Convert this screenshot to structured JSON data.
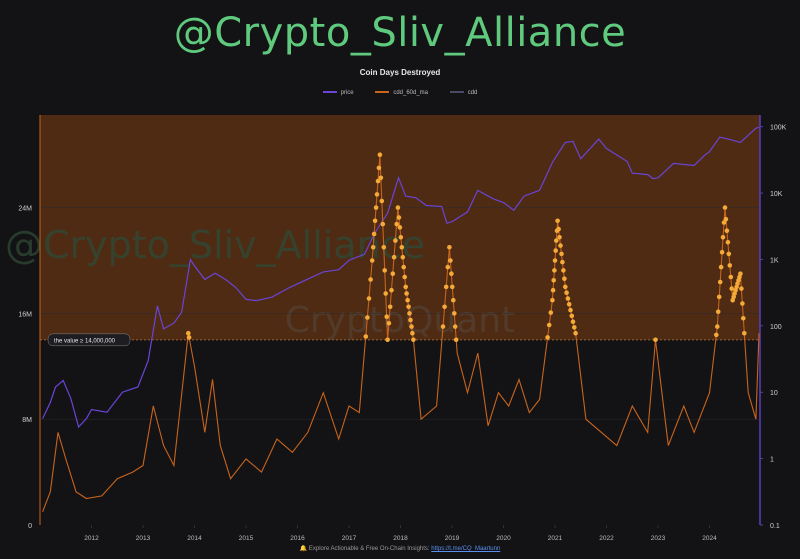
{
  "header": {
    "channel_watermark": "@Crypto_Sliv_Alliance"
  },
  "chart_data": {
    "type": "line",
    "title": "Coin Days Destroyed",
    "legend": [
      {
        "name": "price",
        "color": "#6a45d6"
      },
      {
        "name": "cdd_60d_ma",
        "color": "#c8641c"
      },
      {
        "name": "cdd",
        "color": "#4a4a66"
      }
    ],
    "x_ticks": [
      "2012",
      "2013",
      "2014",
      "2015",
      "2016",
      "2017",
      "2018",
      "2019",
      "2020",
      "2021",
      "2022",
      "2023",
      "2024"
    ],
    "left_axis": {
      "ticks": [
        "0",
        "8M",
        "16M",
        "24M"
      ],
      "range": [
        0,
        31000000
      ]
    },
    "right_axis": {
      "scale": "log",
      "ticks": [
        "0.1",
        "1",
        "10",
        "100",
        "1K",
        "10K",
        "100K"
      ],
      "range": [
        0.1,
        150000
      ]
    },
    "threshold": {
      "value": 14000000,
      "label": "the value ≥ 14,000,000"
    },
    "background_watermarks": [
      "@Crypto_Sliv_Alliance",
      "CryptoQuant"
    ],
    "highlight_color": "#f5a938",
    "series": [
      {
        "name": "price",
        "axis": "right",
        "points": [
          [
            2011.05,
            4
          ],
          [
            2011.2,
            7
          ],
          [
            2011.3,
            12
          ],
          [
            2011.45,
            15
          ],
          [
            2011.6,
            8
          ],
          [
            2011.75,
            3
          ],
          [
            2011.9,
            4
          ],
          [
            2012.0,
            5.5
          ],
          [
            2012.3,
            5
          ],
          [
            2012.6,
            10
          ],
          [
            2012.9,
            12
          ],
          [
            2013.1,
            30
          ],
          [
            2013.28,
            200
          ],
          [
            2013.4,
            90
          ],
          [
            2013.6,
            110
          ],
          [
            2013.75,
            160
          ],
          [
            2013.92,
            1000
          ],
          [
            2014.0,
            800
          ],
          [
            2014.2,
            500
          ],
          [
            2014.4,
            620
          ],
          [
            2014.6,
            500
          ],
          [
            2014.8,
            380
          ],
          [
            2015.0,
            250
          ],
          [
            2015.2,
            240
          ],
          [
            2015.5,
            270
          ],
          [
            2015.85,
            380
          ],
          [
            2016.0,
            430
          ],
          [
            2016.5,
            650
          ],
          [
            2016.8,
            700
          ],
          [
            2017.0,
            970
          ],
          [
            2017.3,
            1200
          ],
          [
            2017.5,
            2500
          ],
          [
            2017.75,
            5000
          ],
          [
            2017.96,
            17000
          ],
          [
            2018.1,
            9000
          ],
          [
            2018.3,
            8500
          ],
          [
            2018.5,
            6500
          ],
          [
            2018.8,
            6300
          ],
          [
            2018.9,
            3500
          ],
          [
            2019.0,
            3700
          ],
          [
            2019.3,
            5200
          ],
          [
            2019.5,
            11000
          ],
          [
            2019.8,
            8200
          ],
          [
            2020.0,
            7200
          ],
          [
            2020.2,
            5500
          ],
          [
            2020.4,
            9000
          ],
          [
            2020.7,
            11000
          ],
          [
            2020.95,
            29000
          ],
          [
            2021.2,
            58000
          ],
          [
            2021.35,
            60000
          ],
          [
            2021.5,
            33000
          ],
          [
            2021.85,
            65000
          ],
          [
            2022.0,
            47000
          ],
          [
            2022.4,
            30000
          ],
          [
            2022.5,
            20000
          ],
          [
            2022.8,
            19000
          ],
          [
            2022.9,
            16500
          ],
          [
            2023.0,
            17000
          ],
          [
            2023.3,
            28000
          ],
          [
            2023.7,
            26000
          ],
          [
            2023.9,
            37000
          ],
          [
            2024.0,
            42000
          ],
          [
            2024.2,
            70000
          ],
          [
            2024.4,
            64000
          ],
          [
            2024.6,
            58000
          ],
          [
            2024.9,
            95000
          ],
          [
            2024.96,
            98000
          ]
        ]
      },
      {
        "name": "cdd_60d_ma",
        "axis": "left",
        "points": [
          [
            2011.05,
            1000000
          ],
          [
            2011.2,
            2500000
          ],
          [
            2011.35,
            7000000
          ],
          [
            2011.5,
            5000000
          ],
          [
            2011.7,
            2500000
          ],
          [
            2011.9,
            2000000
          ],
          [
            2012.2,
            2200000
          ],
          [
            2012.5,
            3500000
          ],
          [
            2012.8,
            4000000
          ],
          [
            2013.0,
            4500000
          ],
          [
            2013.2,
            9000000
          ],
          [
            2013.4,
            6000000
          ],
          [
            2013.6,
            4500000
          ],
          [
            2013.88,
            14500000
          ],
          [
            2014.0,
            12000000
          ],
          [
            2014.2,
            7000000
          ],
          [
            2014.35,
            11000000
          ],
          [
            2014.5,
            6000000
          ],
          [
            2014.7,
            3500000
          ],
          [
            2015.0,
            5000000
          ],
          [
            2015.3,
            4000000
          ],
          [
            2015.6,
            6500000
          ],
          [
            2015.9,
            5500000
          ],
          [
            2016.2,
            7000000
          ],
          [
            2016.5,
            10000000
          ],
          [
            2016.8,
            6500000
          ],
          [
            2017.0,
            9000000
          ],
          [
            2017.2,
            8500000
          ],
          [
            2017.45,
            20000000
          ],
          [
            2017.6,
            28000000
          ],
          [
            2017.75,
            14000000
          ],
          [
            2017.95,
            24000000
          ],
          [
            2018.1,
            18000000
          ],
          [
            2018.25,
            14000000
          ],
          [
            2018.4,
            8000000
          ],
          [
            2018.7,
            9000000
          ],
          [
            2018.95,
            21000000
          ],
          [
            2019.1,
            13000000
          ],
          [
            2019.3,
            10000000
          ],
          [
            2019.5,
            13000000
          ],
          [
            2019.7,
            7500000
          ],
          [
            2019.9,
            10000000
          ],
          [
            2020.1,
            9000000
          ],
          [
            2020.3,
            11000000
          ],
          [
            2020.5,
            8500000
          ],
          [
            2020.7,
            9500000
          ],
          [
            2020.95,
            17000000
          ],
          [
            2021.05,
            23000000
          ],
          [
            2021.2,
            18000000
          ],
          [
            2021.4,
            14500000
          ],
          [
            2021.6,
            8000000
          ],
          [
            2021.9,
            7000000
          ],
          [
            2022.2,
            6000000
          ],
          [
            2022.5,
            9000000
          ],
          [
            2022.8,
            7000000
          ],
          [
            2022.95,
            14000000
          ],
          [
            2023.2,
            6000000
          ],
          [
            2023.5,
            9000000
          ],
          [
            2023.7,
            7000000
          ],
          [
            2024.0,
            10000000
          ],
          [
            2024.15,
            15000000
          ],
          [
            2024.3,
            24000000
          ],
          [
            2024.45,
            17000000
          ],
          [
            2024.6,
            19000000
          ],
          [
            2024.75,
            10000000
          ],
          [
            2024.9,
            8000000
          ],
          [
            2024.96,
            14500000
          ]
        ]
      }
    ]
  },
  "footer": {
    "text": "Explore Actionable & Free On-Chain Insights:",
    "link": "https://t.me/CQ_Maartunn"
  }
}
